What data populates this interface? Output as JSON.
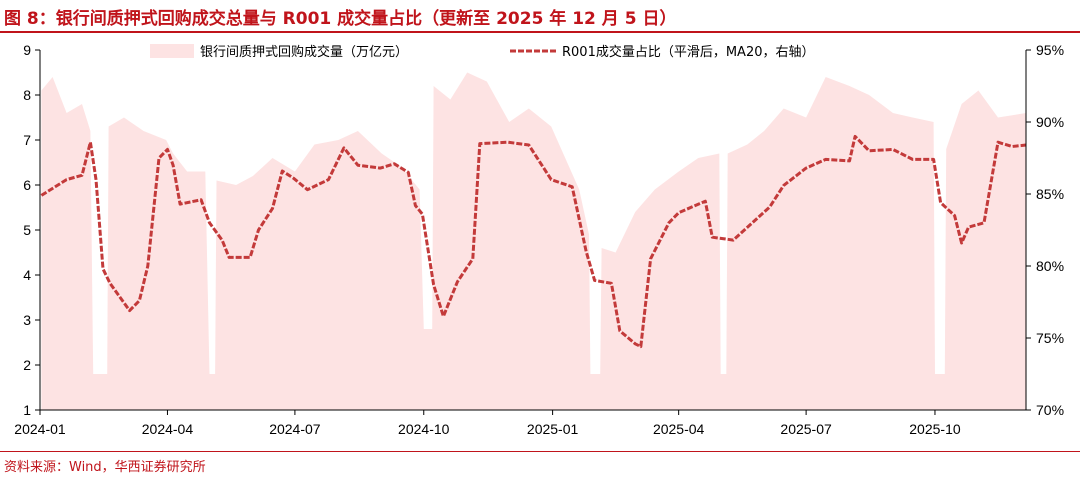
{
  "header": {
    "title": "图 8：银行间质押式回购成交总量与 R001 成交量占比（更新至 2025 年 12 月 5 日）"
  },
  "footer": {
    "source": "资料来源：Wind，华西证券研究所"
  },
  "colors": {
    "accent": "#c0141b",
    "volume_fill": "#fde3e3",
    "ratio_line": "#c33a3a"
  },
  "chart_data": {
    "type": "area",
    "x_tick_labels": [
      "2024-01",
      "2024-04",
      "2024-07",
      "2024-10",
      "2025-01",
      "2025-04",
      "2025-07",
      "2025-10"
    ],
    "x_range": [
      "2024-01-01",
      "2025-12-05"
    ],
    "y_left": {
      "lim": [
        1,
        9
      ],
      "ticks": [
        "1",
        "2",
        "3",
        "4",
        "5",
        "6",
        "7",
        "8",
        "9"
      ]
    },
    "y_right": {
      "lim": [
        70,
        95
      ],
      "ticks": [
        "70%",
        "75%",
        "80%",
        "85%",
        "90%",
        "95%"
      ]
    },
    "legend_position": "top",
    "grid": false,
    "series": [
      {
        "name": "银行间质押式回购成交量（万亿元）",
        "kind": "area",
        "axis": "left",
        "points": [
          [
            "2024-01-02",
            8.1
          ],
          [
            "2024-01-10",
            8.4
          ],
          [
            "2024-01-20",
            7.6
          ],
          [
            "2024-01-31",
            7.8
          ],
          [
            "2024-02-06",
            7.2
          ],
          [
            "2024-02-08",
            1.8
          ],
          [
            "2024-02-18",
            1.8
          ],
          [
            "2024-02-19",
            7.3
          ],
          [
            "2024-03-01",
            7.5
          ],
          [
            "2024-03-15",
            7.2
          ],
          [
            "2024-03-31",
            7.0
          ],
          [
            "2024-04-05",
            6.7
          ],
          [
            "2024-04-15",
            6.3
          ],
          [
            "2024-04-28",
            6.3
          ],
          [
            "2024-05-01",
            1.8
          ],
          [
            "2024-05-05",
            1.8
          ],
          [
            "2024-05-06",
            6.1
          ],
          [
            "2024-05-20",
            6.0
          ],
          [
            "2024-06-01",
            6.2
          ],
          [
            "2024-06-15",
            6.6
          ],
          [
            "2024-07-01",
            6.3
          ],
          [
            "2024-07-15",
            6.9
          ],
          [
            "2024-08-01",
            7.0
          ],
          [
            "2024-08-15",
            7.2
          ],
          [
            "2024-09-01",
            6.7
          ],
          [
            "2024-09-15",
            6.4
          ],
          [
            "2024-09-28",
            5.9
          ],
          [
            "2024-10-01",
            2.8
          ],
          [
            "2024-10-07",
            2.8
          ],
          [
            "2024-10-08",
            8.2
          ],
          [
            "2024-10-20",
            7.9
          ],
          [
            "2024-11-01",
            8.5
          ],
          [
            "2024-11-15",
            8.3
          ],
          [
            "2024-12-01",
            7.4
          ],
          [
            "2024-12-15",
            7.7
          ],
          [
            "2024-12-31",
            7.3
          ],
          [
            "2025-01-10",
            6.6
          ],
          [
            "2025-01-20",
            5.9
          ],
          [
            "2025-01-27",
            4.9
          ],
          [
            "2025-01-28",
            1.8
          ],
          [
            "2025-02-04",
            1.8
          ],
          [
            "2025-02-05",
            4.6
          ],
          [
            "2025-02-15",
            4.5
          ],
          [
            "2025-03-01",
            5.4
          ],
          [
            "2025-03-15",
            5.9
          ],
          [
            "2025-04-01",
            6.3
          ],
          [
            "2025-04-15",
            6.6
          ],
          [
            "2025-04-30",
            6.7
          ],
          [
            "2025-05-01",
            1.8
          ],
          [
            "2025-05-05",
            1.8
          ],
          [
            "2025-05-06",
            6.7
          ],
          [
            "2025-05-20",
            6.9
          ],
          [
            "2025-06-01",
            7.2
          ],
          [
            "2025-06-15",
            7.7
          ],
          [
            "2025-07-01",
            7.5
          ],
          [
            "2025-07-15",
            8.4
          ],
          [
            "2025-08-01",
            8.2
          ],
          [
            "2025-08-15",
            8.0
          ],
          [
            "2025-09-01",
            7.6
          ],
          [
            "2025-09-15",
            7.5
          ],
          [
            "2025-09-30",
            7.4
          ],
          [
            "2025-10-01",
            1.8
          ],
          [
            "2025-10-08",
            1.8
          ],
          [
            "2025-10-09",
            6.8
          ],
          [
            "2025-10-20",
            7.8
          ],
          [
            "2025-11-01",
            8.1
          ],
          [
            "2025-11-15",
            7.5
          ],
          [
            "2025-12-05",
            7.6
          ]
        ]
      },
      {
        "name": "R001成交量占比（平滑后，MA20，右轴）",
        "kind": "line",
        "axis": "right",
        "points": [
          [
            "2024-01-02",
            84.9
          ],
          [
            "2024-01-20",
            86.0
          ],
          [
            "2024-01-31",
            86.3
          ],
          [
            "2024-02-06",
            88.6
          ],
          [
            "2024-02-10",
            86.0
          ],
          [
            "2024-02-15",
            79.8
          ],
          [
            "2024-02-20",
            78.8
          ],
          [
            "2024-03-05",
            76.9
          ],
          [
            "2024-03-12",
            77.6
          ],
          [
            "2024-03-18",
            80.0
          ],
          [
            "2024-03-26",
            87.5
          ],
          [
            "2024-04-01",
            88.1
          ],
          [
            "2024-04-05",
            87.0
          ],
          [
            "2024-04-10",
            84.3
          ],
          [
            "2024-04-25",
            84.6
          ],
          [
            "2024-05-01",
            83.0
          ],
          [
            "2024-05-10",
            81.8
          ],
          [
            "2024-05-15",
            80.6
          ],
          [
            "2024-05-30",
            80.6
          ],
          [
            "2024-06-05",
            82.5
          ],
          [
            "2024-06-15",
            84.0
          ],
          [
            "2024-06-22",
            86.6
          ],
          [
            "2024-06-30",
            86.1
          ],
          [
            "2024-07-10",
            85.3
          ],
          [
            "2024-07-25",
            86.0
          ],
          [
            "2024-08-05",
            88.2
          ],
          [
            "2024-08-15",
            87.0
          ],
          [
            "2024-08-31",
            86.8
          ],
          [
            "2024-09-10",
            87.1
          ],
          [
            "2024-09-20",
            86.5
          ],
          [
            "2024-09-25",
            84.2
          ],
          [
            "2024-09-30",
            83.6
          ],
          [
            "2024-10-08",
            78.7
          ],
          [
            "2024-10-15",
            76.5
          ],
          [
            "2024-10-25",
            78.9
          ],
          [
            "2024-11-05",
            80.5
          ],
          [
            "2024-11-10",
            88.5
          ],
          [
            "2024-11-30",
            88.6
          ],
          [
            "2024-12-15",
            88.4
          ],
          [
            "2024-12-31",
            86.0
          ],
          [
            "2025-01-15",
            85.5
          ],
          [
            "2025-01-25",
            81.0
          ],
          [
            "2025-01-31",
            79.0
          ],
          [
            "2025-02-12",
            78.8
          ],
          [
            "2025-02-18",
            75.5
          ],
          [
            "2025-03-01",
            74.6
          ],
          [
            "2025-03-05",
            74.4
          ],
          [
            "2025-03-12",
            80.5
          ],
          [
            "2025-03-25",
            83.0
          ],
          [
            "2025-04-01",
            83.7
          ],
          [
            "2025-04-20",
            84.5
          ],
          [
            "2025-04-25",
            82.0
          ],
          [
            "2025-05-10",
            81.8
          ],
          [
            "2025-06-05",
            84.1
          ],
          [
            "2025-06-15",
            85.6
          ],
          [
            "2025-07-01",
            86.8
          ],
          [
            "2025-07-15",
            87.4
          ],
          [
            "2025-08-01",
            87.3
          ],
          [
            "2025-08-05",
            89.0
          ],
          [
            "2025-08-15",
            88.0
          ],
          [
            "2025-09-01",
            88.1
          ],
          [
            "2025-09-15",
            87.4
          ],
          [
            "2025-09-30",
            87.4
          ],
          [
            "2025-10-05",
            84.4
          ],
          [
            "2025-10-15",
            83.5
          ],
          [
            "2025-10-20",
            81.6
          ],
          [
            "2025-10-25",
            82.7
          ],
          [
            "2025-11-05",
            83.0
          ],
          [
            "2025-11-15",
            88.6
          ],
          [
            "2025-11-25",
            88.3
          ],
          [
            "2025-12-05",
            88.4
          ]
        ]
      }
    ]
  }
}
